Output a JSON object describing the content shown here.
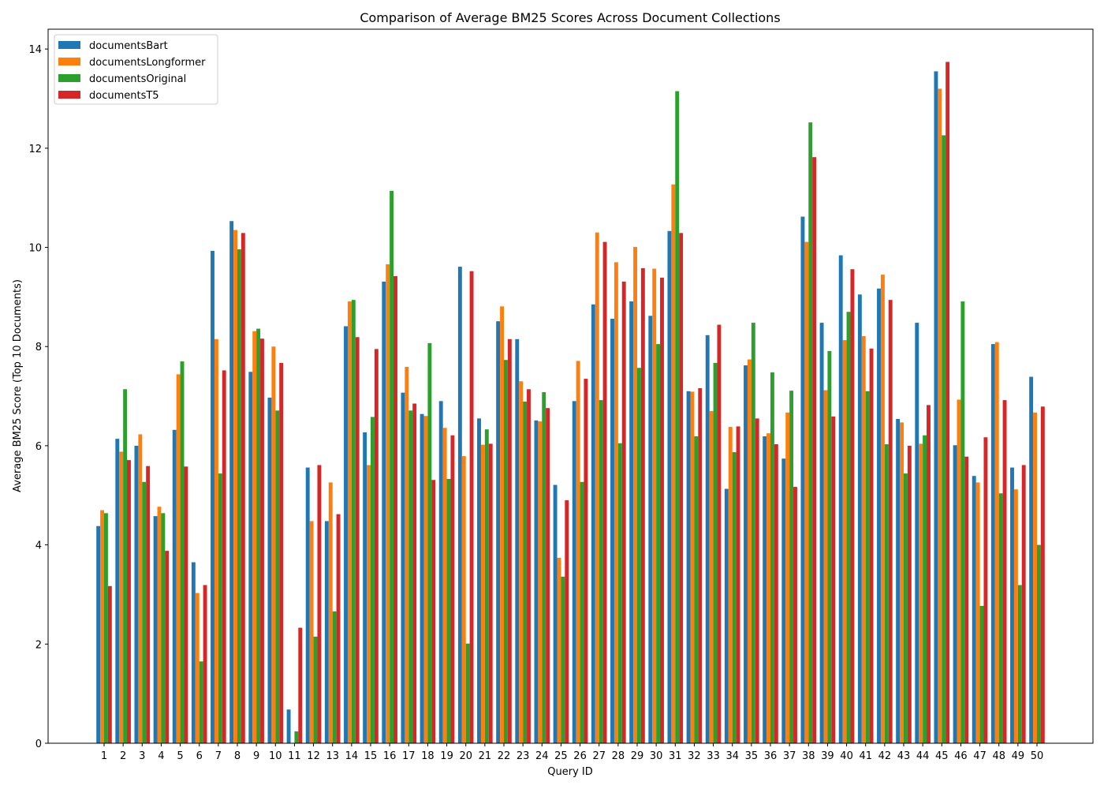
{
  "chart_data": {
    "type": "bar",
    "title": "Comparison of Average BM25 Scores Across Document Collections",
    "xlabel": "Query ID",
    "ylabel": "Average BM25 Score (Top 10 Documents)",
    "ylim": [
      0,
      14.4
    ],
    "yticks": [
      0,
      2,
      4,
      6,
      8,
      10,
      12,
      14
    ],
    "grid": false,
    "legend_position": "top-left",
    "categories": [
      "1",
      "2",
      "3",
      "4",
      "5",
      "6",
      "7",
      "8",
      "9",
      "10",
      "11",
      "12",
      "13",
      "14",
      "15",
      "16",
      "17",
      "18",
      "19",
      "20",
      "21",
      "22",
      "23",
      "24",
      "25",
      "26",
      "27",
      "28",
      "29",
      "30",
      "31",
      "32",
      "33",
      "34",
      "35",
      "36",
      "37",
      "38",
      "39",
      "40",
      "41",
      "42",
      "43",
      "44",
      "45",
      "46",
      "47",
      "48",
      "49",
      "50"
    ],
    "series": [
      {
        "name": "documentsBart",
        "color": "#1f77b4",
        "values": [
          4.38,
          6.14,
          6.0,
          4.58,
          6.32,
          3.65,
          9.93,
          10.53,
          7.49,
          6.97,
          0.68,
          5.56,
          4.48,
          8.41,
          6.27,
          9.31,
          7.07,
          6.64,
          6.9,
          9.61,
          6.55,
          8.51,
          8.15,
          6.51,
          5.21,
          6.9,
          8.85,
          8.56,
          8.91,
          8.62,
          10.33,
          7.1,
          8.23,
          5.13,
          7.62,
          6.19,
          5.74,
          10.62,
          8.48,
          9.84,
          9.05,
          9.17,
          6.54,
          8.48,
          13.55,
          6.01,
          5.39,
          8.05,
          5.56,
          7.39
        ]
      },
      {
        "name": "documentsLongformer",
        "color": "#ff7f0e",
        "values": [
          4.7,
          5.88,
          6.23,
          4.77,
          7.44,
          3.03,
          8.15,
          10.35,
          8.31,
          8.0,
          0.0,
          4.48,
          5.26,
          8.91,
          5.61,
          9.66,
          7.59,
          6.6,
          6.36,
          5.79,
          6.02,
          8.81,
          7.3,
          6.49,
          3.74,
          7.71,
          10.3,
          9.7,
          10.01,
          9.57,
          11.27,
          7.09,
          6.7,
          6.38,
          7.74,
          6.25,
          6.67,
          10.11,
          7.12,
          8.13,
          8.21,
          9.45,
          6.47,
          6.04,
          13.2,
          6.93,
          5.26,
          8.09,
          5.12,
          6.67
        ]
      },
      {
        "name": "documentsOriginal",
        "color": "#2ca02c",
        "values": [
          4.64,
          7.14,
          5.27,
          4.64,
          7.7,
          1.65,
          5.44,
          9.96,
          8.36,
          6.71,
          0.24,
          2.15,
          2.66,
          8.94,
          6.58,
          11.14,
          6.71,
          8.07,
          5.33,
          2.01,
          6.33,
          7.73,
          6.89,
          7.08,
          3.36,
          5.27,
          6.92,
          6.05,
          7.57,
          8.05,
          13.15,
          6.19,
          7.67,
          5.87,
          8.48,
          7.48,
          7.11,
          12.52,
          7.91,
          8.7,
          7.1,
          6.03,
          5.44,
          6.21,
          12.26,
          8.91,
          2.77,
          5.04,
          3.19,
          4.0
        ]
      },
      {
        "name": "documentsT5",
        "color": "#d62728",
        "values": [
          3.17,
          5.71,
          5.59,
          3.88,
          5.58,
          3.19,
          7.52,
          10.29,
          8.16,
          7.67,
          2.33,
          5.61,
          4.62,
          8.19,
          7.95,
          9.42,
          6.85,
          5.31,
          6.21,
          9.52,
          6.04,
          8.15,
          7.14,
          6.76,
          4.9,
          7.35,
          10.11,
          9.31,
          9.58,
          9.39,
          10.29,
          7.16,
          8.44,
          6.39,
          6.55,
          6.03,
          5.17,
          11.82,
          6.59,
          9.56,
          7.96,
          8.94,
          6.0,
          6.82,
          13.74,
          5.78,
          6.17,
          6.92,
          5.61,
          6.79
        ]
      }
    ]
  }
}
